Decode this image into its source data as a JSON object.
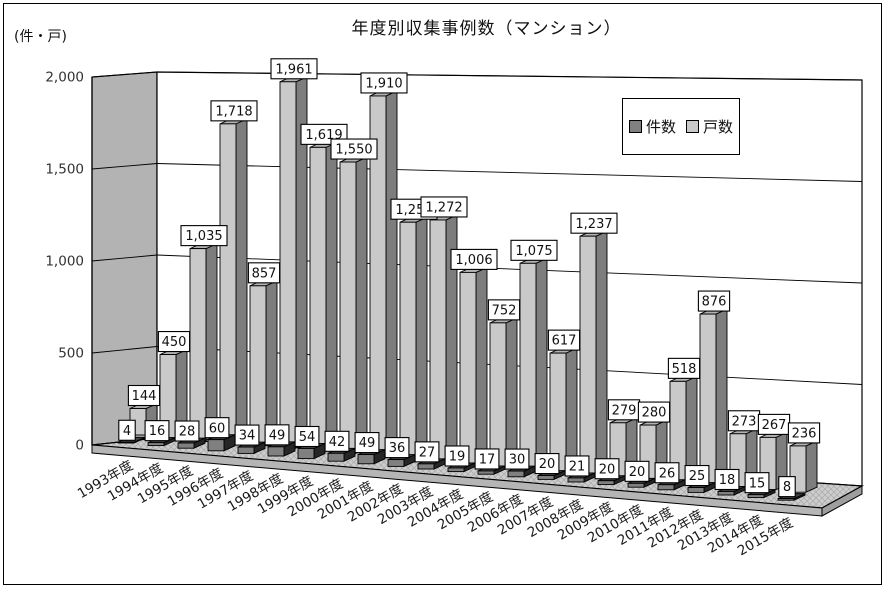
{
  "chart_data": {
    "type": "bar",
    "projection": "3d-column",
    "title": "年度別収集事例数（マンション）",
    "unit_label": "(件・戸)",
    "categories": [
      "1993年度",
      "1994年度",
      "1995年度",
      "1996年度",
      "1997年度",
      "1998年度",
      "1999年度",
      "2000年度",
      "2001年度",
      "2002年度",
      "2003年度",
      "2004年度",
      "2005年度",
      "2006年度",
      "2007年度",
      "2008年度",
      "2009年度",
      "2010年度",
      "2011年度",
      "2012年度",
      "2013年度",
      "2014年度",
      "2015年度"
    ],
    "series": [
      {
        "key": "kensu",
        "name": "件数",
        "values": [
          4,
          16,
          28,
          60,
          34,
          49,
          54,
          42,
          49,
          36,
          27,
          19,
          17,
          30,
          20,
          21,
          20,
          20,
          26,
          25,
          18,
          15,
          8
        ],
        "color": {
          "front": "#808080",
          "side": "#262626",
          "top": "#404040"
        }
      },
      {
        "key": "kosu",
        "name": "戸数",
        "values": [
          144,
          450,
          1035,
          1718,
          857,
          1961,
          1619,
          1550,
          1910,
          1250,
          1272,
          1006,
          752,
          1075,
          617,
          1237,
          279,
          280,
          518,
          876,
          273,
          267,
          236
        ],
        "color": {
          "front": "#c9c9c9",
          "side": "#7d7d7d",
          "top": "#b2b2b2"
        }
      }
    ],
    "ylim": [
      0,
      2000
    ],
    "yticks": [
      0,
      500,
      1000,
      1500,
      2000
    ],
    "ytick_labels": [
      "0",
      "500",
      "1,000",
      "1,500",
      "2,000"
    ],
    "grid": true,
    "data_labels": true,
    "legend_position": "upper-right"
  },
  "colors": {
    "background": "#ffffff",
    "wall": "#b3b3b3",
    "back_wall": "#ffffff",
    "floor": "#cdcdcd",
    "floor_hatch": "#a8a8a8",
    "floor_front": "#b5b5b5",
    "floor_side": "#9e9e9e",
    "gridline": "#000000",
    "label_box_bg": "#ffffff",
    "label_box_border": "#000000",
    "tick_text": "#333333"
  }
}
